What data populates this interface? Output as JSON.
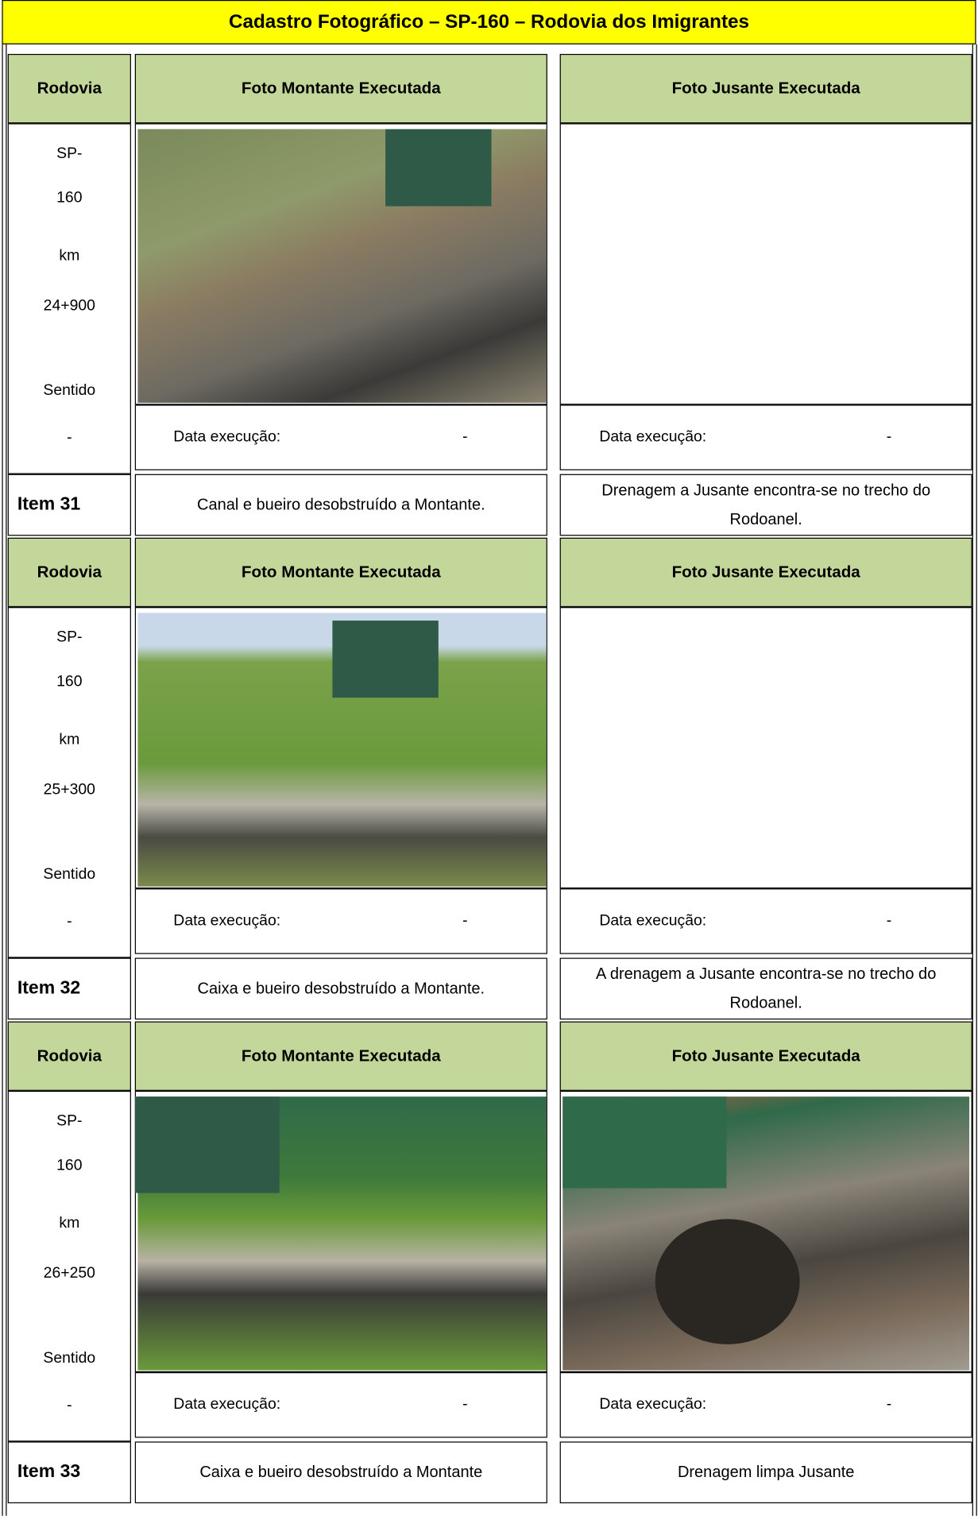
{
  "header": {
    "title": "Cadastro Fotográfico – SP-160 – Rodovia dos Imigrantes"
  },
  "blocks": [
    {
      "column_headers": [
        "Rodovia",
        "Foto Montante Executada",
        "Foto Jusante Executada"
      ],
      "location": [
        "SP-",
        "160",
        "km",
        "24+900",
        "Sentido",
        "-"
      ],
      "montante_date": {
        "label": "Data execução:",
        "value": "-"
      },
      "jusante_date": {
        "label": "Data execução:",
        "value": "-"
      },
      "item": "Item 31",
      "montante_description": "Canal e bueiro desobstruído a Montante.",
      "jusante_description": "Drenagem a Jusante encontra-se no trecho do Rodoanel."
    },
    {
      "column_headers": [
        "Rodovia",
        "Foto Montante Executada",
        "Foto Jusante Executada"
      ],
      "location": [
        "SP-",
        "160",
        "km",
        "25+300",
        "Sentido",
        "-"
      ],
      "montante_date": {
        "label": "Data execução:",
        "value": "-"
      },
      "jusante_date": {
        "label": "Data execução:",
        "value": "-"
      },
      "item": "Item 32",
      "montante_description": "Caixa e bueiro desobstruído a Montante.",
      "jusante_description": "A drenagem a Jusante encontra-se no trecho do Rodoanel."
    },
    {
      "column_headers": [
        "Rodovia",
        "Foto Montante Executada",
        "Foto Jusante Executada"
      ],
      "location": [
        "SP-",
        "160",
        "km",
        "26+250",
        "Sentido",
        "-"
      ],
      "montante_date": {
        "label": "Data execução:",
        "value": "-"
      },
      "jusante_date": {
        "label": "Data execução:",
        "value": "-"
      },
      "item": "Item 33",
      "montante_description": "Caixa e bueiro desobstruído a Montante",
      "jusante_description": "Drenagem limpa Jusante"
    }
  ]
}
